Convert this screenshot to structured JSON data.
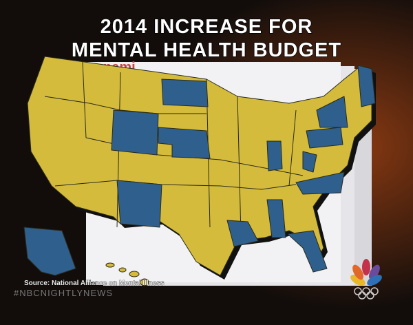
{
  "title": {
    "line1": "2014 INCREASE FOR",
    "line2": "MENTAL HEALTH BUDGET"
  },
  "logo": "nami",
  "source": "Source: National Alliance on Mental Illness",
  "hashtag": "#NBCNIGHTLYNEWS"
}
